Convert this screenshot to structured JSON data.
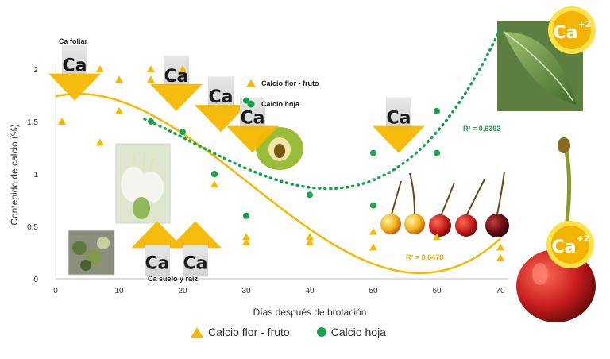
{
  "chart_data": {
    "type": "scatter",
    "xlabel": "Días después de brotación",
    "ylabel": "Contenido de calcio (%)",
    "xlim": [
      0,
      70
    ],
    "ylim": [
      0,
      2
    ],
    "xticks": [
      "0",
      "10",
      "20",
      "30",
      "40",
      "50",
      "60",
      "70"
    ],
    "yticks": [
      "0",
      "0,5",
      "1",
      "1,5",
      "2"
    ],
    "series": [
      {
        "name": "Calcio flor - fruto",
        "marker": "triangle",
        "color": "#f5b800",
        "points": [
          [
            1,
            1.5
          ],
          [
            7,
            1.3
          ],
          [
            7,
            2.0
          ],
          [
            10,
            1.9
          ],
          [
            10,
            1.6
          ],
          [
            15,
            2.0
          ],
          [
            15,
            1.9
          ],
          [
            20,
            2.0
          ],
          [
            25,
            0.9
          ],
          [
            30,
            0.4
          ],
          [
            30,
            0.35
          ],
          [
            40,
            0.4
          ],
          [
            40,
            0.35
          ],
          [
            50,
            0.45
          ],
          [
            50,
            0.3
          ],
          [
            60,
            0.4
          ],
          [
            70,
            0.3
          ],
          [
            70,
            0.2
          ]
        ],
        "trend": "polynomial",
        "r2_label": "R² = 0,6478"
      },
      {
        "name": "Calcio hoja",
        "marker": "circle",
        "color": "#16a14a",
        "points": [
          [
            15,
            1.5
          ],
          [
            20,
            1.4
          ],
          [
            25,
            1.0
          ],
          [
            30,
            0.6
          ],
          [
            30,
            1.7
          ],
          [
            40,
            0.8
          ],
          [
            50,
            0.7
          ],
          [
            50,
            1.2
          ],
          [
            60,
            1.6
          ],
          [
            60,
            1.2
          ]
        ],
        "trend": "polynomial",
        "r2_label": "R² = 0,6392"
      }
    ],
    "legend_position": "bottom",
    "annotations": [
      {
        "text": "Ca foliar"
      },
      {
        "text": "Ca suelo y raíz"
      },
      {
        "text": "Calcio flor - fruto"
      },
      {
        "text": "Calcio hoja"
      }
    ],
    "arrows": [
      {
        "dir": "down",
        "x": 3,
        "y": 1.7,
        "text": "Ca"
      },
      {
        "dir": "down",
        "x": 19,
        "y": 1.6,
        "text": "Ca"
      },
      {
        "dir": "down",
        "x": 26,
        "y": 1.4,
        "text": "Ca"
      },
      {
        "dir": "down",
        "x": 31,
        "y": 1.2,
        "text": "Ca"
      },
      {
        "dir": "down",
        "x": 54,
        "y": 1.2,
        "text": "Ca"
      },
      {
        "dir": "up",
        "x": 16,
        "y": 0.55,
        "text": "Ca"
      },
      {
        "dir": "up",
        "x": 22,
        "y": 0.55,
        "text": "Ca"
      }
    ],
    "badge_text": "Ca",
    "badge_superscript": "+2"
  }
}
